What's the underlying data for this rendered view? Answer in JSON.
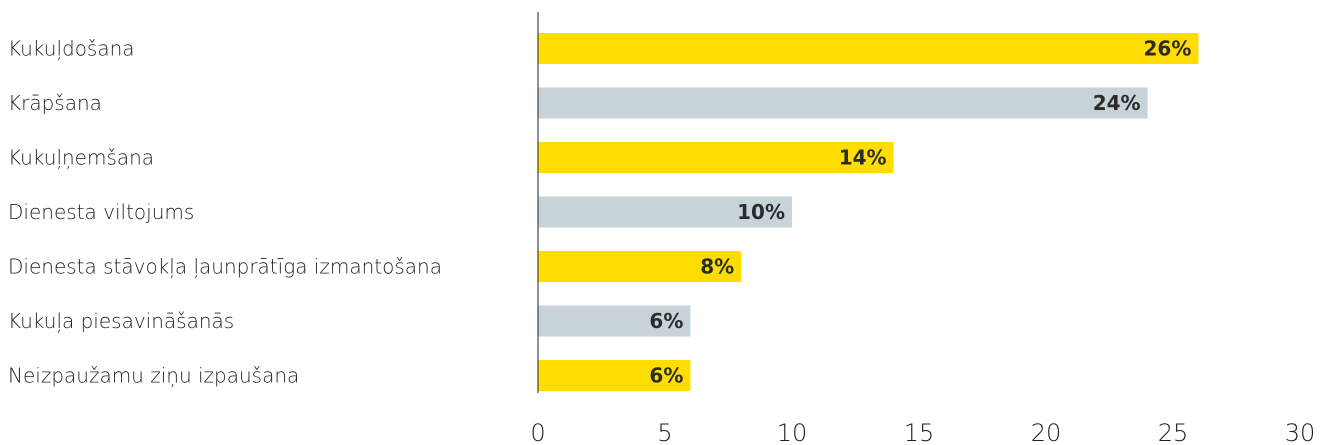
{
  "chart_data": {
    "type": "bar",
    "orientation": "horizontal",
    "categories": [
      "Kukuļdošana",
      "Krāpšana",
      "Kukuļņemšana",
      "Dienesta viltojums",
      "Dienesta stāvokļa ļaunprātīga izmantošana",
      "Kukuļa piesavināšanās",
      "Neizpaužamu ziņu izpaušana"
    ],
    "values": [
      26,
      24,
      14,
      10,
      8,
      6,
      6
    ],
    "value_labels": [
      "26%",
      "24%",
      "14%",
      "10%",
      "8%",
      "6%",
      "6%"
    ],
    "bar_colors": [
      "#FFDD00",
      "#C8D3D9",
      "#FFDD00",
      "#C8D3D9",
      "#FFDD00",
      "#C8D3D9",
      "#FFDD00"
    ],
    "x_ticks": [
      "0",
      "5",
      "10",
      "15",
      "20",
      "25",
      "30"
    ],
    "xlim": [
      0,
      30
    ],
    "title": "",
    "xlabel": "",
    "ylabel": "",
    "grid": false,
    "legend": "none"
  }
}
